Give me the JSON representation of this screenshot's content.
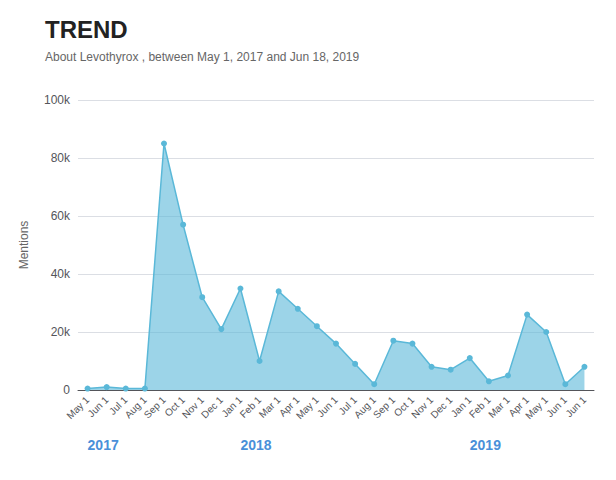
{
  "chart_data": {
    "type": "line",
    "title": "TREND",
    "subtitle": "About Levothyrox , between May 1, 2017 and Jun 18, 2019",
    "ylabel": "Mentions",
    "categories": [
      "May 1",
      "Jun 1",
      "Jul 1",
      "Aug 1",
      "Sep 1",
      "Oct 1",
      "Nov 1",
      "Dec 1",
      "Jan 1",
      "Feb 1",
      "Mar 1",
      "Apr 1",
      "May 1",
      "Jun 1",
      "Jul 1",
      "Aug 1",
      "Sep 1",
      "Oct 1",
      "Nov 1",
      "Dec 1",
      "Jan 1",
      "Feb 1",
      "Mar 1",
      "Apr 1",
      "May 1",
      "Jun 1",
      "Jun 1"
    ],
    "values": [
      500,
      1000,
      500,
      500,
      85000,
      57000,
      32000,
      21000,
      35000,
      10000,
      34000,
      28000,
      22000,
      16000,
      9000,
      2000,
      17000,
      16000,
      8000,
      7000,
      11000,
      3000,
      5000,
      26000,
      20000,
      2000,
      8000
    ],
    "color": "#5ab8d8",
    "ylim": [
      0,
      100000
    ],
    "yticks": [
      0,
      {
        "value": 20000,
        "label": "20k"
      },
      {
        "value": 40000,
        "label": "40k"
      },
      {
        "value": 60000,
        "label": "60k"
      },
      {
        "value": 80000,
        "label": "80k"
      },
      {
        "value": 100000,
        "label": "100k"
      }
    ],
    "grid": true,
    "annotations": [
      {
        "text": "2017",
        "category_index": 0
      },
      {
        "text": "2018",
        "category_index": 8
      },
      {
        "text": "2019",
        "category_index": 20
      }
    ]
  }
}
